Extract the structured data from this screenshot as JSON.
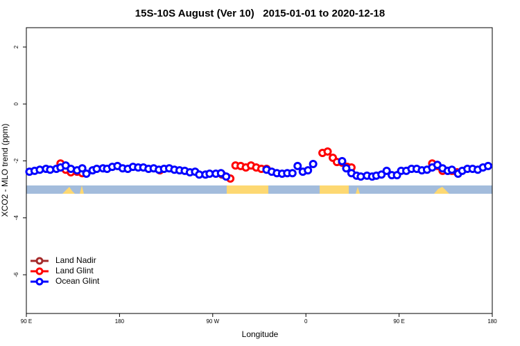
{
  "chart_data": {
    "type": "scatter",
    "title": "15S-10S August (Ver 10)   2015-01-01 to 2020-12-18",
    "x_label": "Longitude",
    "y_label": "XCO2 - MLO trend (ppm)",
    "xlim": [
      90,
      540
    ],
    "ylim": [
      -7.36,
      2.68
    ],
    "xticks": [
      {
        "value": 90,
        "label": "90 E"
      },
      180,
      {
        "value": 270,
        "label": "90 W"
      },
      {
        "value": 360,
        "label": "0"
      },
      {
        "value": 450,
        "label": "90 E"
      },
      {
        "value": 540,
        "label": "180"
      }
    ],
    "yticks": [
      -6,
      -4,
      -2,
      0,
      2
    ],
    "legend": "bottom-left",
    "series": [
      {
        "name": "Land Nadir",
        "color": "#a52a2a",
        "x": [
          279
        ],
        "values": [
          -2.48
        ]
      },
      {
        "name": "Land Glint",
        "color": "#ff0000",
        "x": [
          123,
          128,
          133,
          139,
          144,
          219,
          287,
          292,
          297,
          302,
          307,
          312,
          317,
          322,
          376,
          381,
          386,
          390,
          395,
          400,
          404,
          482,
          487,
          492,
          497,
          501,
          506
        ],
        "values": [
          -2.09,
          -2.31,
          -2.4,
          -2.38,
          -2.43,
          -2.33,
          -2.62,
          -2.16,
          -2.18,
          -2.23,
          -2.16,
          -2.23,
          -2.28,
          -2.28,
          -1.72,
          -1.67,
          -1.89,
          -2.04,
          -2.06,
          -2.21,
          -2.23,
          -2.09,
          -2.18,
          -2.35,
          -2.35,
          -2.35,
          -2.4
        ]
      },
      {
        "name": "Ocean Glint",
        "color": "#0000ff",
        "x": [
          93,
          98,
          103,
          109,
          113,
          119,
          123,
          128,
          133,
          139,
          144,
          148,
          154,
          158,
          164,
          168,
          173,
          178,
          183,
          188,
          193,
          198,
          203,
          208,
          213,
          218,
          223,
          228,
          233,
          238,
          243,
          248,
          253,
          257,
          263,
          267,
          273,
          278,
          283,
          322,
          327,
          332,
          337,
          342,
          347,
          352,
          357,
          362,
          367,
          395,
          399,
          404,
          409,
          413,
          419,
          424,
          428,
          433,
          438,
          443,
          448,
          452,
          457,
          462,
          467,
          472,
          477,
          482,
          487,
          492,
          497,
          501,
          507,
          511,
          516,
          521,
          526,
          531,
          536
        ],
        "values": [
          -2.38,
          -2.35,
          -2.31,
          -2.28,
          -2.31,
          -2.28,
          -2.23,
          -2.16,
          -2.28,
          -2.33,
          -2.26,
          -2.45,
          -2.33,
          -2.28,
          -2.26,
          -2.28,
          -2.21,
          -2.18,
          -2.26,
          -2.28,
          -2.21,
          -2.23,
          -2.23,
          -2.28,
          -2.26,
          -2.31,
          -2.28,
          -2.26,
          -2.31,
          -2.33,
          -2.35,
          -2.4,
          -2.38,
          -2.48,
          -2.48,
          -2.45,
          -2.45,
          -2.43,
          -2.55,
          -2.31,
          -2.38,
          -2.43,
          -2.45,
          -2.43,
          -2.43,
          -2.18,
          -2.38,
          -2.33,
          -2.11,
          -2.01,
          -2.26,
          -2.43,
          -2.52,
          -2.55,
          -2.52,
          -2.55,
          -2.52,
          -2.48,
          -2.35,
          -2.5,
          -2.5,
          -2.35,
          -2.35,
          -2.28,
          -2.28,
          -2.33,
          -2.31,
          -2.23,
          -2.14,
          -2.26,
          -2.35,
          -2.31,
          -2.45,
          -2.35,
          -2.28,
          -2.28,
          -2.31,
          -2.23,
          -2.18
        ]
      }
    ]
  }
}
